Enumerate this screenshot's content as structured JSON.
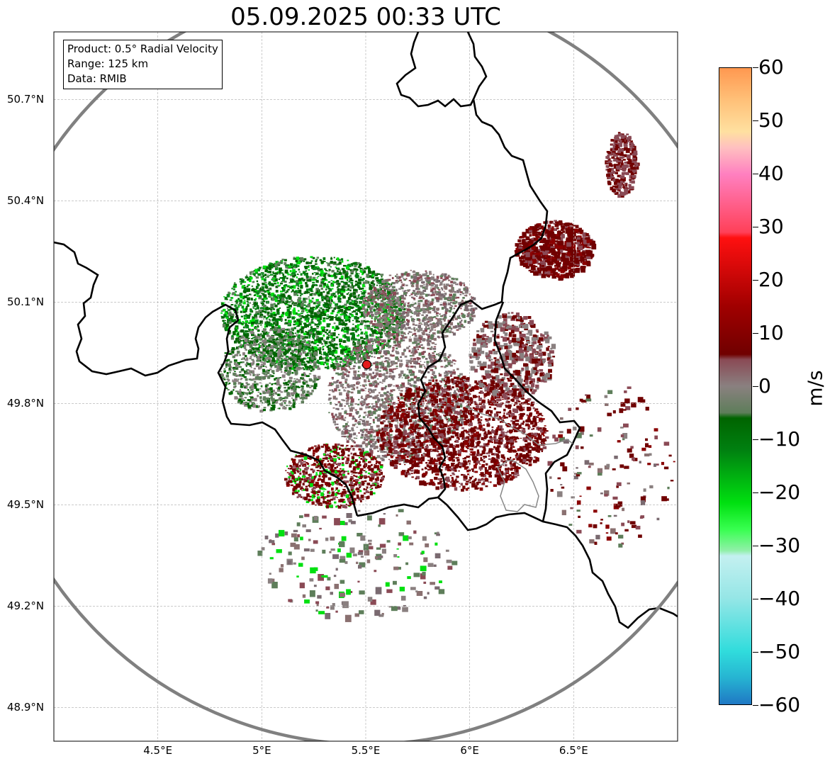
{
  "title": "05.09.2025 00:33 UTC",
  "info_box": {
    "product": "Product: 0.5° Radial Velocity",
    "range": "Range: 125 km",
    "data": "Data: RMIB"
  },
  "map_extent": {
    "lon_min": 4.0,
    "lon_max": 7.0,
    "lat_min": 48.8,
    "lat_max": 50.9
  },
  "radar_site": {
    "lon": 5.505,
    "lat": 49.915,
    "color": "#e41a1c"
  },
  "range_ring_km": 125,
  "gridlines": true,
  "lon_ticks": [
    {
      "value": 4.5,
      "label": "4.5°E"
    },
    {
      "value": 5.0,
      "label": "5°E"
    },
    {
      "value": 5.5,
      "label": "5.5°E"
    },
    {
      "value": 6.0,
      "label": "6°E"
    },
    {
      "value": 6.5,
      "label": "6.5°E"
    }
  ],
  "lat_ticks": [
    {
      "value": 50.7,
      "label": "50.7°N"
    },
    {
      "value": 50.4,
      "label": "50.4°N"
    },
    {
      "value": 50.1,
      "label": "50.1°N"
    },
    {
      "value": 49.8,
      "label": "49.8°N"
    },
    {
      "value": 49.5,
      "label": "49.5°N"
    },
    {
      "value": 49.2,
      "label": "49.2°N"
    },
    {
      "value": 48.9,
      "label": "48.9°N"
    }
  ],
  "colorbar": {
    "unit": "m/s",
    "min": -60,
    "max": 60,
    "ticks": [
      {
        "value": 60,
        "label": "60"
      },
      {
        "value": 50,
        "label": "50"
      },
      {
        "value": 40,
        "label": "40"
      },
      {
        "value": 30,
        "label": "30"
      },
      {
        "value": 20,
        "label": "20"
      },
      {
        "value": 10,
        "label": "10"
      },
      {
        "value": 0,
        "label": "0"
      },
      {
        "value": -10,
        "label": "−10"
      },
      {
        "value": -20,
        "label": "−20"
      },
      {
        "value": -30,
        "label": "−30"
      },
      {
        "value": -40,
        "label": "−40"
      },
      {
        "value": -50,
        "label": "−50"
      },
      {
        "value": -60,
        "label": "−60"
      }
    ],
    "stops": [
      {
        "value": -60,
        "color": "#1f78c4"
      },
      {
        "value": -55,
        "color": "#26b4d2"
      },
      {
        "value": -50,
        "color": "#30dcdc"
      },
      {
        "value": -40,
        "color": "#95e6e6"
      },
      {
        "value": -32,
        "color": "#c4f0f0"
      },
      {
        "value": -31,
        "color": "#90f0a8"
      },
      {
        "value": -27,
        "color": "#38ff50"
      },
      {
        "value": -22,
        "color": "#00e010"
      },
      {
        "value": -12,
        "color": "#008010"
      },
      {
        "value": -6,
        "color": "#006400"
      },
      {
        "value": -5,
        "color": "#5e7e5a"
      },
      {
        "value": 0,
        "color": "#8a8080"
      },
      {
        "value": 5,
        "color": "#8a4a55"
      },
      {
        "value": 6,
        "color": "#700000"
      },
      {
        "value": 15,
        "color": "#a00000"
      },
      {
        "value": 28,
        "color": "#ff1010"
      },
      {
        "value": 29,
        "color": "#ff4058"
      },
      {
        "value": 40,
        "color": "#ff80c0"
      },
      {
        "value": 45,
        "color": "#ffc0c0"
      },
      {
        "value": 48,
        "color": "#ffe0a0"
      },
      {
        "value": 54,
        "color": "#ffc078"
      },
      {
        "value": 60,
        "color": "#ff9850"
      }
    ]
  },
  "colors": {
    "positive_velocity": "#700000",
    "positive_velocity_light": "#8a4a55",
    "zero_velocity": "#8a8080",
    "negative_velocity": "#006400",
    "negative_velocity_light": "#5e7e5a",
    "bright_green": "#00e010",
    "border": "#000000",
    "grey_border": "#888888",
    "range_ring": "#808080"
  }
}
